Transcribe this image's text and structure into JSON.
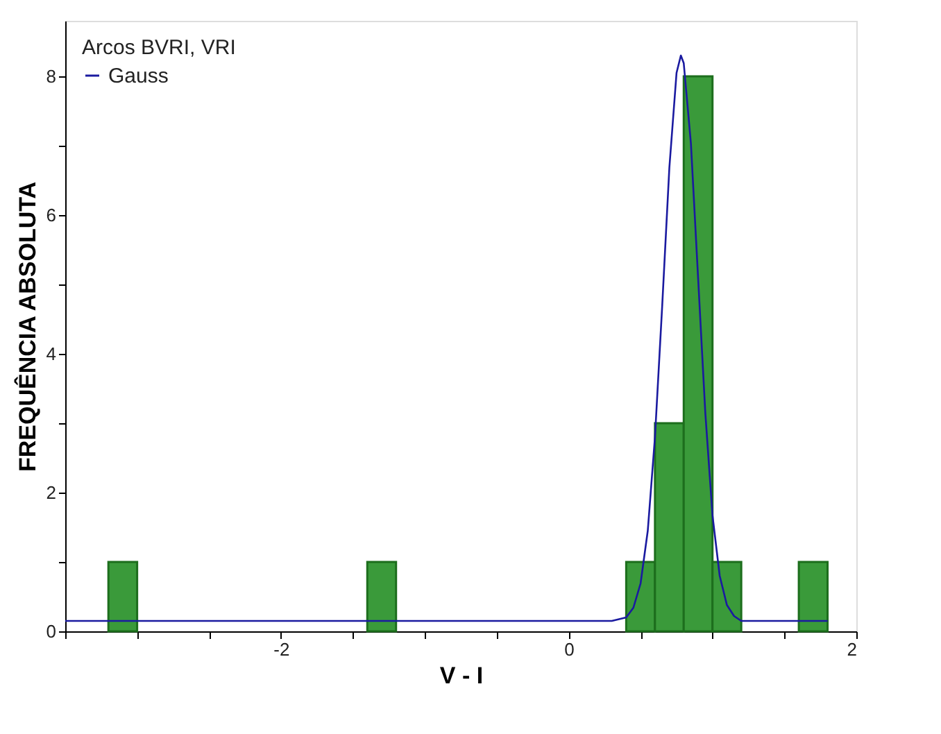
{
  "chart_data": {
    "type": "histogram",
    "xlabel": "V - I",
    "ylabel": "FREQUÊNCIA ABSOLUTA",
    "legend_title": "Arcos BVRI, VRI",
    "legend": "top left",
    "grid": false,
    "xlim": [
      -3.5,
      2
    ],
    "xticks": [
      {
        "value": -3.5,
        "label": null
      },
      {
        "value": -3,
        "label": null
      },
      {
        "value": -2.5,
        "label": null
      },
      -2,
      {
        "value": -1.5,
        "label": null
      },
      {
        "value": -1,
        "label": null
      },
      {
        "value": -0.5,
        "label": null
      },
      0,
      {
        "value": 0.5,
        "label": null
      },
      {
        "value": 1,
        "label": null
      },
      {
        "value": 1.5,
        "label": null
      },
      2
    ],
    "ylim": [
      0,
      8.8
    ],
    "yticks": [
      0,
      {
        "value": 1,
        "label": null
      },
      2,
      {
        "value": 3,
        "label": null
      },
      4,
      {
        "value": 5,
        "label": null
      },
      6,
      {
        "value": 7,
        "label": null
      },
      8
    ],
    "series": [
      {
        "type": "histogram",
        "color": "#3a9a3a",
        "bins": [
          -3.2,
          -3.0,
          -2.8,
          -2.6,
          -2.4,
          -2.2,
          -2.0,
          -1.8,
          -1.6,
          -1.4,
          -1.2,
          -1.0,
          -0.8,
          -0.6,
          -0.4,
          -0.2,
          0.0,
          0.2,
          0.4,
          0.6,
          0.8,
          1.0,
          1.2,
          1.4,
          1.6,
          1.8
        ],
        "values": [
          1,
          0,
          0,
          0,
          0,
          0,
          0,
          0,
          0,
          1,
          0,
          0,
          0,
          0,
          0,
          0,
          0,
          0,
          1,
          3,
          8,
          1,
          0,
          0,
          1
        ]
      },
      {
        "type": "line",
        "name": "Gauss",
        "color": "#1a1aa0",
        "x": [
          -3.5,
          0.3,
          0.4,
          0.45,
          0.5,
          0.55,
          0.6,
          0.65,
          0.7,
          0.75,
          0.78,
          0.8,
          0.85,
          0.9,
          0.95,
          1.0,
          1.05,
          1.1,
          1.15,
          1.2,
          1.8
        ],
        "values": [
          0.15,
          0.15,
          0.2,
          0.34,
          0.69,
          1.45,
          2.8,
          4.68,
          6.68,
          8.05,
          8.3,
          8.19,
          7.03,
          5.09,
          3.15,
          1.67,
          0.8,
          0.38,
          0.22,
          0.15,
          0.15
        ]
      }
    ]
  }
}
